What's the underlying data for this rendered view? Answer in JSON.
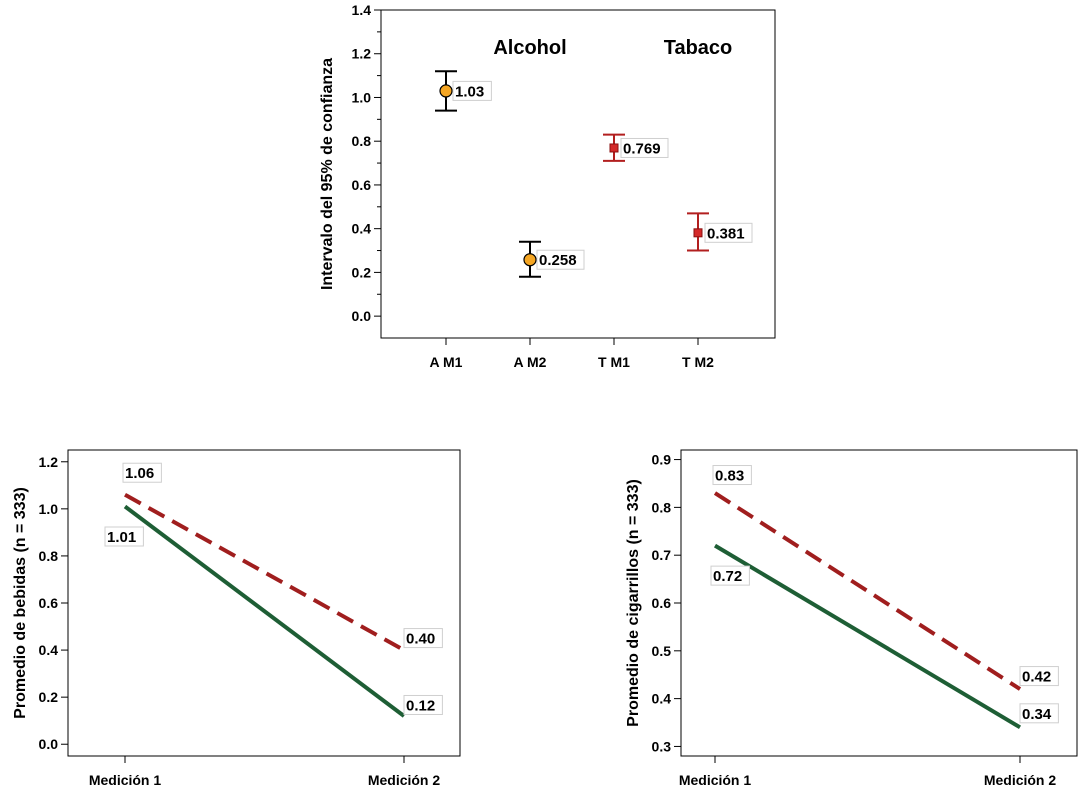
{
  "colors": {
    "alcohol": "#f5a623",
    "tobacco": "#d42a2a",
    "errorbar_alcohol": "#000000",
    "errorbar_tobacco": "#b21f1f",
    "dashed_series": "#a01e1e",
    "solid_series": "#1e5e35"
  },
  "chart_data": [
    {
      "type": "scatter",
      "ylabel": "Intervalo del 95% de confianza",
      "ylim": [
        -0.1,
        1.4
      ],
      "yticks": [
        "0.0",
        "0.2",
        "0.4",
        "0.6",
        "0.8",
        "1.0",
        "1.2",
        "1.4"
      ],
      "categories": [
        "A M1",
        "A M2",
        "T M1",
        "T M2"
      ],
      "group_labels": [
        "Alcohol",
        "Tabaco"
      ],
      "points": [
        {
          "category": "A M1",
          "value": 1.03,
          "label": "1.03",
          "ci_low": 0.94,
          "ci_high": 1.12,
          "marker": "circle",
          "group": "alcohol"
        },
        {
          "category": "A M2",
          "value": 0.258,
          "label": "0.258",
          "ci_low": 0.18,
          "ci_high": 0.34,
          "marker": "circle",
          "group": "alcohol"
        },
        {
          "category": "T M1",
          "value": 0.769,
          "label": "0.769",
          "ci_low": 0.71,
          "ci_high": 0.83,
          "marker": "square",
          "group": "tobacco"
        },
        {
          "category": "T M2",
          "value": 0.381,
          "label": "0.381",
          "ci_low": 0.3,
          "ci_high": 0.47,
          "marker": "square",
          "group": "tobacco"
        }
      ],
      "grid": false
    },
    {
      "type": "line",
      "ylabel": "Promedio de bebidas (n = 333)",
      "ylim": [
        -0.05,
        1.25
      ],
      "yticks": [
        "0.0",
        "0.2",
        "0.4",
        "0.6",
        "0.8",
        "1.0",
        "1.2"
      ],
      "categories": [
        "Medición 1",
        "Medición 2"
      ],
      "series": [
        {
          "style": "dashed",
          "values": [
            1.06,
            0.4
          ],
          "labels": [
            "1.06",
            "0.40"
          ]
        },
        {
          "style": "solid",
          "values": [
            1.01,
            0.12
          ],
          "labels": [
            "1.01",
            "0.12"
          ]
        }
      ],
      "grid": false
    },
    {
      "type": "line",
      "ylabel": "Promedio de cigarrillos (n = 333)",
      "ylim": [
        0.28,
        0.92
      ],
      "yticks": [
        "0.3",
        "0.4",
        "0.5",
        "0.6",
        "0.7",
        "0.8",
        "0.9"
      ],
      "categories": [
        "Medición 1",
        "Medición 2"
      ],
      "series": [
        {
          "style": "dashed",
          "values": [
            0.83,
            0.42
          ],
          "labels": [
            "0.83",
            "0.42"
          ]
        },
        {
          "style": "solid",
          "values": [
            0.72,
            0.34
          ],
          "labels": [
            "0.72",
            "0.34"
          ]
        }
      ],
      "grid": false
    }
  ]
}
